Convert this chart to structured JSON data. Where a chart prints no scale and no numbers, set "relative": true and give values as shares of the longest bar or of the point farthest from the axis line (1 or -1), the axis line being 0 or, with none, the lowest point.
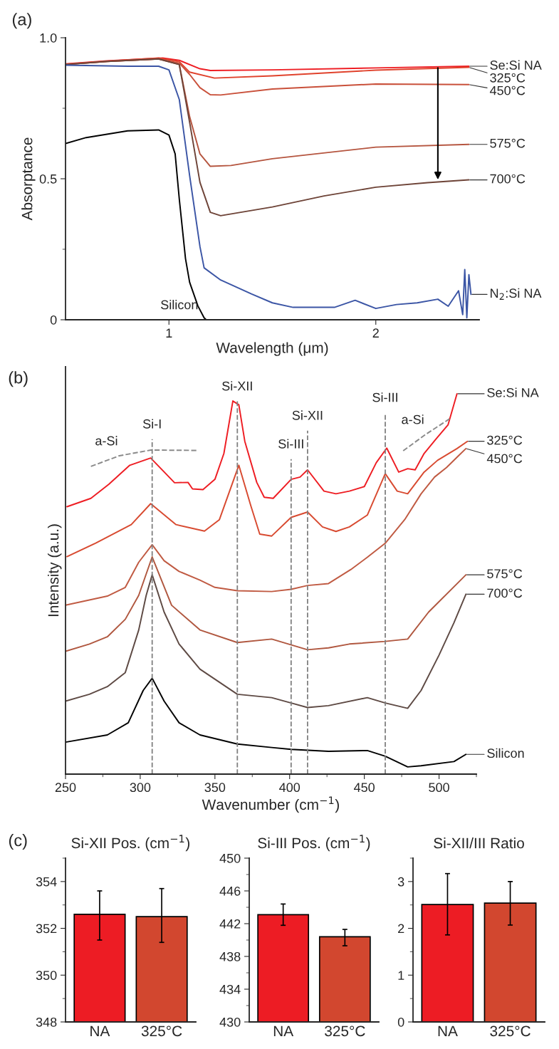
{
  "chart_data": [
    {
      "type": "line",
      "xlabel": "Wavelength (μm)",
      "ylabel": "Absorptance",
      "annotations": [
        "(a)"
      ],
      "xlim": [
        0.5,
        2.5
      ],
      "xticks": [
        1,
        2
      ],
      "ylim": [
        0,
        1.0
      ],
      "yticks": [
        0,
        {
          "value": 0.25,
          "label": null
        },
        0.5,
        {
          "value": 0.75,
          "label": null
        },
        {
          "value": 1.0,
          "label": "1.0"
        }
      ],
      "series": [
        {
          "name": "Se:Si NA",
          "color": "#ee1d23",
          "x": [
            0.5,
            0.7,
            0.85,
            0.97,
            1.05,
            1.15,
            1.2,
            1.5,
            2.0,
            2.45
          ],
          "values": [
            0.907,
            0.918,
            0.924,
            0.928,
            0.92,
            0.89,
            0.884,
            0.886,
            0.893,
            0.899
          ]
        },
        {
          "name": "325°C",
          "color": "#e0422c",
          "x": [
            0.5,
            0.7,
            0.95,
            1.05,
            1.1,
            1.22,
            1.5,
            2.0,
            2.45
          ],
          "values": [
            0.906,
            0.917,
            0.928,
            0.915,
            0.878,
            0.857,
            0.865,
            0.885,
            0.895
          ]
        },
        {
          "name": "450°C",
          "color": "#c9503a",
          "x": [
            0.5,
            0.7,
            0.95,
            1.05,
            1.1,
            1.15,
            1.2,
            1.25,
            1.5,
            2.0,
            2.45
          ],
          "values": [
            0.905,
            0.916,
            0.925,
            0.91,
            0.87,
            0.823,
            0.798,
            0.797,
            0.818,
            0.836,
            0.834
          ]
        },
        {
          "name": "575°C",
          "color": "#b5553f",
          "x": [
            0.5,
            0.7,
            0.95,
            1.05,
            1.1,
            1.15,
            1.2,
            1.3,
            1.5,
            2.0,
            2.45
          ],
          "values": [
            0.905,
            0.916,
            0.925,
            0.905,
            0.72,
            0.588,
            0.544,
            0.547,
            0.571,
            0.612,
            0.622
          ]
        },
        {
          "name": "700°C",
          "color": "#6e4438",
          "x": [
            0.5,
            0.7,
            0.95,
            1.05,
            1.1,
            1.15,
            1.2,
            1.25,
            1.5,
            1.75,
            2.0,
            2.25,
            2.45
          ],
          "values": [
            0.905,
            0.916,
            0.925,
            0.905,
            0.7,
            0.487,
            0.381,
            0.369,
            0.4,
            0.439,
            0.47,
            0.486,
            0.496
          ]
        },
        {
          "name": "N$_{2}$:Si NA",
          "color": "#3b55a5",
          "x": [
            0.5,
            0.8,
            0.95,
            1.0,
            1.05,
            1.1,
            1.15,
            1.17,
            1.25,
            1.4,
            1.5,
            1.6,
            1.8,
            1.9,
            2.0,
            2.1,
            2.2,
            2.3,
            2.35,
            2.4,
            2.42,
            2.43,
            2.44,
            2.45,
            2.46
          ],
          "values": [
            0.903,
            0.899,
            0.899,
            0.886,
            0.781,
            0.511,
            0.259,
            0.184,
            0.141,
            0.091,
            0.06,
            0.044,
            0.044,
            0.069,
            0.04,
            0.054,
            0.06,
            0.073,
            0.048,
            0.103,
            0.018,
            0.178,
            0.007,
            0.16,
            0.09
          ]
        },
        {
          "name": "Silicon",
          "color": "#000000",
          "x": [
            0.5,
            0.6,
            0.8,
            0.95,
            1.0,
            1.03,
            1.05,
            1.08,
            1.1,
            1.14,
            1.17,
            1.18,
            2.0,
            2.45
          ],
          "values": [
            0.625,
            0.646,
            0.67,
            0.673,
            0.655,
            0.588,
            0.428,
            0.217,
            0.133,
            0.049,
            0.007,
            0,
            0,
            0
          ]
        }
      ]
    },
    {
      "type": "line",
      "relative": true,
      "xlabel": "Wavenumber (cm$^{−1}$)",
      "ylabel": "Intensity (a.u.)",
      "annotations": [
        "(b)",
        {
          "text": "a-Si",
          "x": 286,
          "y": 0.837
        },
        {
          "text": "a-Si",
          "x": 491,
          "y": 0.893
        }
      ],
      "xlim": [
        250,
        525
      ],
      "xticks": [
        250,
        {
          "value": 275,
          "label": null
        },
        300,
        {
          "value": 325,
          "label": null
        },
        350,
        {
          "value": 375,
          "label": null
        },
        400,
        {
          "value": 425,
          "label": null
        },
        450,
        {
          "value": 475,
          "label": null
        },
        500,
        {
          "value": 525,
          "label": null
        }
      ],
      "ref_lines": [
        {
          "axis": "x",
          "value": 308,
          "label": "Si-I",
          "color": "#808080",
          "line_style": "dashed"
        },
        {
          "axis": "x",
          "value": 365,
          "label": "Si-XII",
          "color": "#808080",
          "line_style": "dashed"
        },
        {
          "axis": "x",
          "value": 401,
          "label": "Si-III",
          "color": "#808080",
          "line_style": "dashed"
        },
        {
          "axis": "x",
          "value": 412,
          "label": "Si-XII",
          "color": "#808080",
          "line_style": "dashed"
        },
        {
          "axis": "x",
          "value": 464,
          "label": "Si-III",
          "color": "#808080",
          "line_style": "dashed"
        }
      ],
      "series": [
        {
          "name": "Se:Si NA",
          "color": "#ee1d23",
          "x": [
            251,
            267,
            279,
            293,
            307,
            323,
            332,
            335,
            342,
            350,
            356,
            362,
            366,
            370,
            378,
            383,
            389,
            401,
            407,
            412,
            423,
            431,
            440,
            450,
            458,
            465,
            473,
            479,
            484,
            490,
            498,
            506,
            512
          ],
          "values": [
            0.703,
            0.725,
            0.762,
            0.812,
            0.831,
            0.766,
            0.767,
            0.75,
            0.748,
            0.775,
            0.843,
            0.981,
            0.971,
            0.875,
            0.767,
            0.728,
            0.725,
            0.775,
            0.781,
            0.8,
            0.744,
            0.737,
            0.744,
            0.756,
            0.819,
            0.857,
            0.794,
            0.803,
            0.8,
            0.843,
            0.881,
            0.918,
            1.0
          ]
        },
        {
          "name": "325°C",
          "color": "#d84a30",
          "x": [
            251,
            270,
            294,
            307,
            324,
            343,
            353,
            366,
            374,
            380,
            388,
            401,
            412,
            422,
            431,
            440,
            452,
            464,
            472,
            479,
            490,
            499,
            512,
            519
          ],
          "values": [
            0.572,
            0.607,
            0.656,
            0.711,
            0.656,
            0.639,
            0.669,
            0.812,
            0.706,
            0.631,
            0.626,
            0.675,
            0.689,
            0.65,
            0.638,
            0.65,
            0.681,
            0.79,
            0.744,
            0.737,
            0.794,
            0.825,
            0.856,
            0.875
          ]
        },
        {
          "name": "450°C",
          "color": "#c05a42",
          "x": [
            250,
            278,
            290,
            299,
            308,
            316,
            326,
            340,
            350,
            365,
            388,
            401,
            412,
            426,
            441,
            452,
            464,
            477,
            488,
            497,
            505,
            513,
            518
          ],
          "values": [
            0.444,
            0.468,
            0.491,
            0.557,
            0.603,
            0.561,
            0.533,
            0.51,
            0.491,
            0.482,
            0.48,
            0.486,
            0.496,
            0.501,
            0.538,
            0.57,
            0.607,
            0.669,
            0.737,
            0.781,
            0.806,
            0.837,
            0.856
          ]
        },
        {
          "name": "575°C",
          "color": "#b0573f",
          "x": [
            250,
            266,
            278,
            290,
            299,
            308,
            321,
            340,
            365,
            388,
            412,
            426,
            440,
            464,
            479,
            493,
            518
          ],
          "values": [
            0.323,
            0.342,
            0.361,
            0.407,
            0.47,
            0.571,
            0.444,
            0.379,
            0.346,
            0.355,
            0.327,
            0.332,
            0.342,
            0.349,
            0.355,
            0.426,
            0.524
          ]
        },
        {
          "name": "700°C",
          "color": "#5e4a44",
          "x": [
            250,
            266,
            278,
            290,
            299,
            304,
            308,
            316,
            326,
            340,
            365,
            388,
            401,
            412,
            426,
            452,
            464,
            479,
            488,
            500,
            510,
            518
          ],
          "values": [
            0.192,
            0.21,
            0.23,
            0.267,
            0.379,
            0.47,
            0.524,
            0.426,
            0.342,
            0.276,
            0.21,
            0.201,
            0.187,
            0.175,
            0.18,
            0.201,
            0.187,
            0.173,
            0.22,
            0.313,
            0.398,
            0.473
          ]
        },
        {
          "name": "Silicon",
          "color": "#000000",
          "x": [
            250,
            278,
            292,
            302,
            308,
            316,
            326,
            340,
            365,
            388,
            401,
            426,
            452,
            464,
            479,
            488,
            510,
            518
          ],
          "values": [
            0.084,
            0.103,
            0.135,
            0.22,
            0.252,
            0.192,
            0.135,
            0.103,
            0.079,
            0.07,
            0.065,
            0.06,
            0.062,
            0.047,
            0.019,
            0.022,
            0.033,
            0.052
          ]
        },
        {
          "color": "#8a8a8a",
          "line_style": "dashed",
          "x": [
            267,
            286,
            307,
            339
          ],
          "values": [
            0.809,
            0.837,
            0.852,
            0.851
          ]
        },
        {
          "color": "#8a8a8a",
          "line_style": "dashed",
          "x": [
            476,
            491,
            507
          ],
          "values": [
            0.85,
            0.893,
            0.934
          ]
        }
      ]
    },
    {
      "type": "bar",
      "title": "Si-XII Pos. (cm$^{−1}$)",
      "annotations": [
        "(c)"
      ],
      "categories": [
        "NA",
        "325°C"
      ],
      "values": [
        352.6,
        352.5
      ],
      "colors": [
        "#ed1c24",
        "#d2472f"
      ],
      "errors": [
        [
          351.5,
          353.6
        ],
        [
          351.4,
          353.7
        ]
      ],
      "ylim": [
        348,
        355
      ],
      "yticks": [
        348,
        {
          "value": 349,
          "label": null
        },
        350,
        {
          "value": 351,
          "label": null
        },
        352,
        {
          "value": 353,
          "label": null
        },
        354,
        {
          "value": 355,
          "label": null
        }
      ]
    },
    {
      "type": "bar",
      "title": "Si-III Pos. (cm$^{−1}$)",
      "categories": [
        "NA",
        "325°C"
      ],
      "values": [
        443.1,
        440.4
      ],
      "colors": [
        "#ed1c24",
        "#d2472f"
      ],
      "errors": [
        [
          441.8,
          444.4
        ],
        [
          439.3,
          441.3
        ]
      ],
      "ylim": [
        430,
        450
      ],
      "yticks": [
        430,
        {
          "value": 432,
          "label": null
        },
        434,
        {
          "value": 436,
          "label": null
        },
        438,
        {
          "value": 440,
          "label": null
        },
        442,
        {
          "value": 444,
          "label": null
        },
        446,
        {
          "value": 448,
          "label": null
        },
        450
      ]
    },
    {
      "type": "bar",
      "title": "Si-XII/III Ratio",
      "categories": [
        "NA",
        "325°C"
      ],
      "values": [
        2.51,
        2.54
      ],
      "colors": [
        "#ed1c24",
        "#d2472f"
      ],
      "errors": [
        [
          1.86,
          3.17
        ],
        [
          2.07,
          3.0
        ]
      ],
      "ylim": [
        0,
        3.5
      ],
      "yticks": [
        0,
        {
          "value": 0.5,
          "label": null
        },
        1,
        {
          "value": 1.5,
          "label": null
        },
        2,
        {
          "value": 2.5,
          "label": null
        },
        3,
        {
          "value": 3.5,
          "label": null
        }
      ]
    }
  ]
}
